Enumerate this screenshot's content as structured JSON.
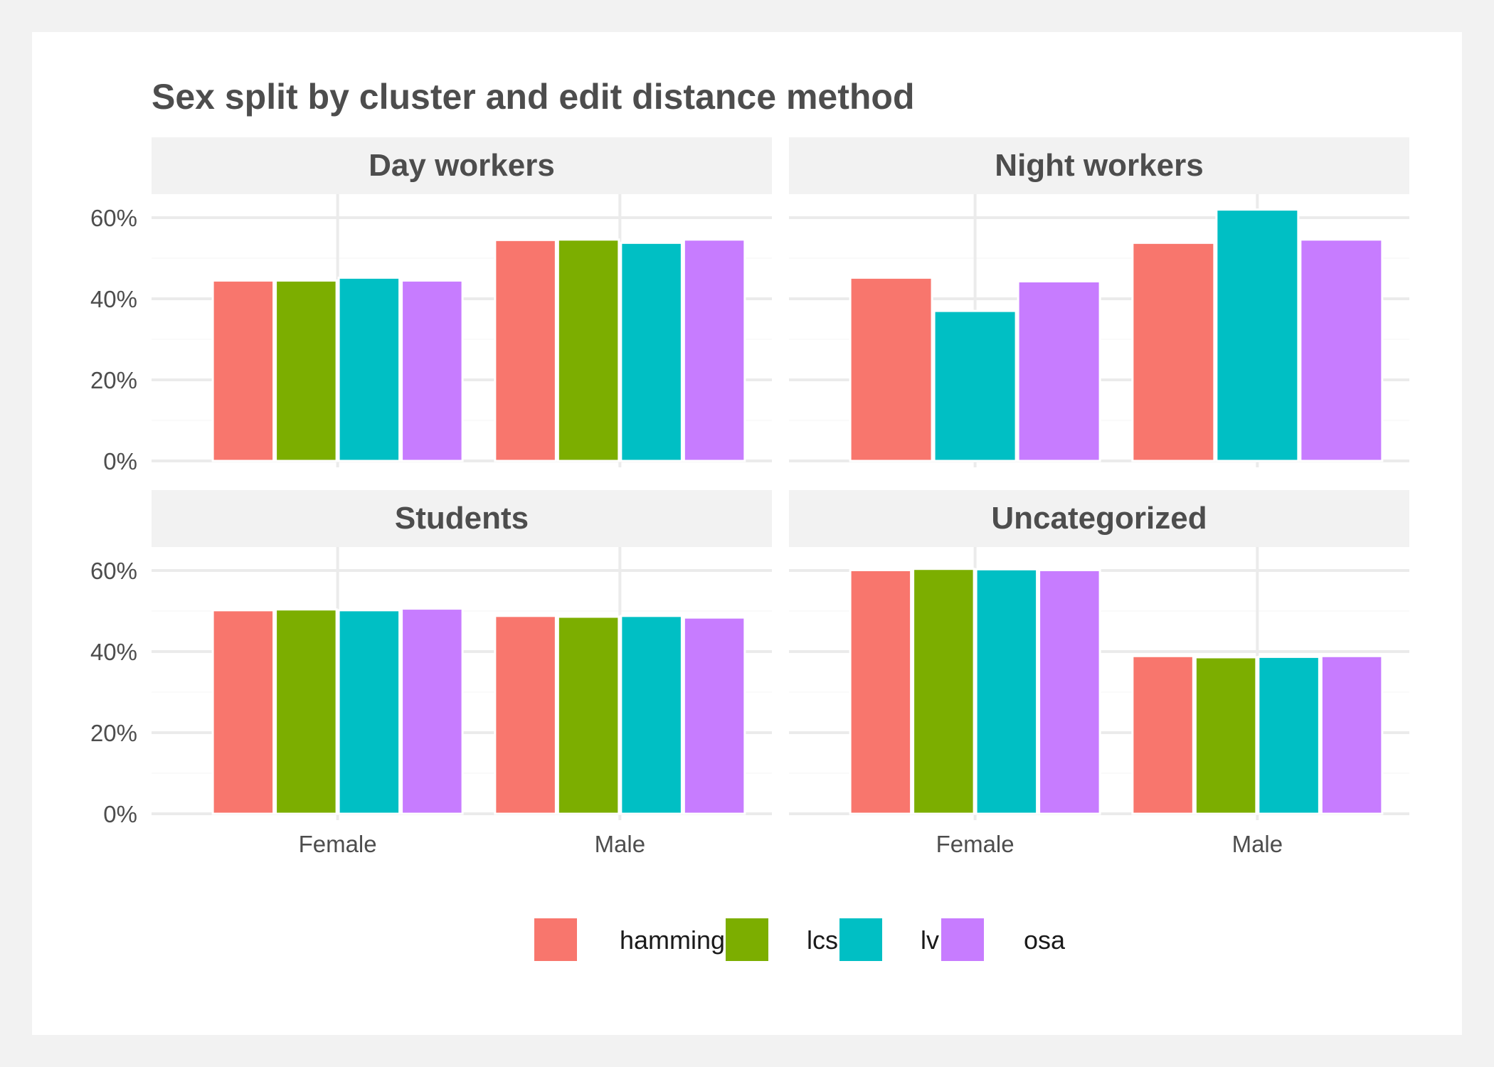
{
  "chart_data": {
    "type": "bar",
    "title": "Sex split by cluster and edit distance method",
    "categories": [
      "Female",
      "Male"
    ],
    "ylim": [
      0,
      0.66
    ],
    "y_ticks": [
      {
        "value": 0,
        "label": "0%"
      },
      {
        "value": 0.2,
        "label": "20%"
      },
      {
        "value": 0.4,
        "label": "40%"
      },
      {
        "value": 0.6,
        "label": "60%"
      }
    ],
    "grid": true,
    "legend_position": "bottom",
    "legend": [
      {
        "name": "hamming",
        "color": "#F8766D"
      },
      {
        "name": "lcs",
        "color": "#7CAE00"
      },
      {
        "name": "lv",
        "color": "#00BFC4"
      },
      {
        "name": "osa",
        "color": "#C77CFF"
      }
    ],
    "panels": [
      {
        "name": "Day workers",
        "series": [
          {
            "name": "hamming",
            "values": [
              0.445,
              0.545
            ]
          },
          {
            "name": "lcs",
            "values": [
              0.445,
              0.546
            ]
          },
          {
            "name": "lv",
            "values": [
              0.452,
              0.538
            ]
          },
          {
            "name": "osa",
            "values": [
              0.445,
              0.546
            ]
          }
        ]
      },
      {
        "name": "Night workers",
        "series": [
          {
            "name": "hamming",
            "values": [
              0.452,
              0.538
            ]
          },
          {
            "name": "lv",
            "values": [
              0.37,
              0.62
            ]
          },
          {
            "name": "osa",
            "values": [
              0.443,
              0.546
            ]
          }
        ]
      },
      {
        "name": "Students",
        "series": [
          {
            "name": "hamming",
            "values": [
              0.502,
              0.488
            ]
          },
          {
            "name": "lcs",
            "values": [
              0.504,
              0.486
            ]
          },
          {
            "name": "lv",
            "values": [
              0.502,
              0.488
            ]
          },
          {
            "name": "osa",
            "values": [
              0.506,
              0.484
            ]
          }
        ]
      },
      {
        "name": "Uncategorized",
        "series": [
          {
            "name": "hamming",
            "values": [
              0.601,
              0.389
            ]
          },
          {
            "name": "lcs",
            "values": [
              0.604,
              0.386
            ]
          },
          {
            "name": "lv",
            "values": [
              0.603,
              0.387
            ]
          },
          {
            "name": "osa",
            "values": [
              0.601,
              0.389
            ]
          }
        ]
      }
    ]
  }
}
